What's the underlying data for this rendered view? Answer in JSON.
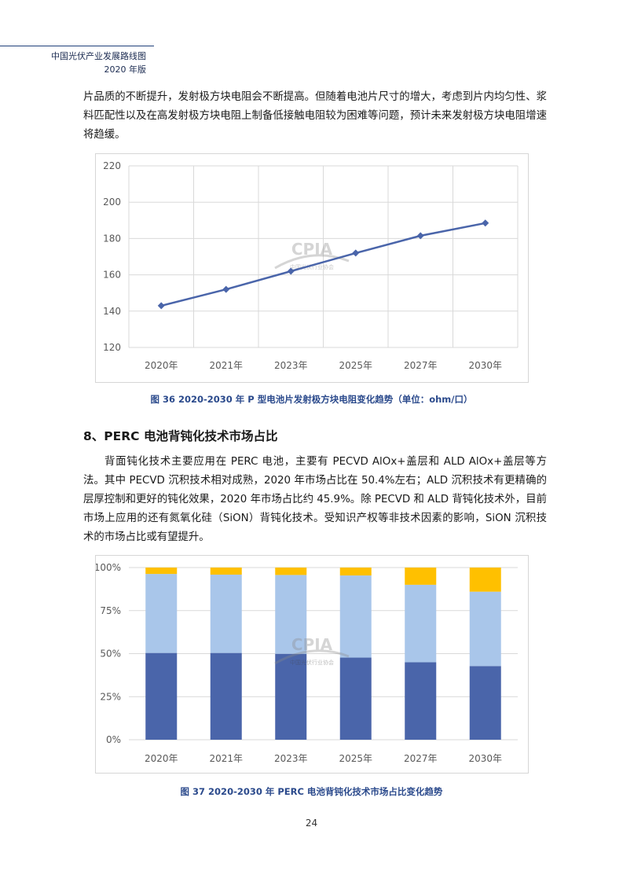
{
  "header": {
    "title": "中国光伏产业发展路线图",
    "subtitle": "2020 年版"
  },
  "intro_paragraph": "片品质的不断提升，发射极方块电阻会不断提高。但随着电池片尺寸的增大，考虑到片内均匀性、浆料匹配性以及在高发射极方块电阻上制备低接触电阻较为困难等问题，预计未来发射极方块电阻增速将趋缓。",
  "figure36": {
    "caption": "图 36   2020-2030 年 P 型电池片发射极方块电阻变化趋势（单位：ohm/口）",
    "watermark": "CPIA",
    "watermark_sub": "中国光伏行业协会"
  },
  "section8": {
    "title": "8、PERC 电池背钝化技术市场占比",
    "paragraph": "背面钝化技术主要应用在 PERC 电池，主要有 PECVD AlOx+盖层和 ALD AlOx+盖层等方法。其中 PECVD 沉积技术相对成熟，2020 年市场占比在 50.4%左右；ALD 沉积技术有更精确的层厚控制和更好的钝化效果，2020 年市场占比约 45.9%。除 PECVD 和 ALD 背钝化技术外，目前市场上应用的还有氮氧化硅（SiON）背钝化技术。受知识产权等非技术因素的影响，SiON 沉积技术的市场占比或有望提升。"
  },
  "figure37": {
    "caption": "图 37   2020-2030 年 PERC 电池背钝化技术市场占比变化趋势",
    "watermark": "CPIA",
    "watermark_sub": "中国光伏行业协会"
  },
  "page_number": "24",
  "colors": {
    "line": "#4a65aa",
    "bar_bottom": "#4a65aa",
    "bar_middle": "#a9c6ea",
    "bar_top": "#ffc000",
    "caption": "#2b4a8c"
  },
  "chart_data": [
    {
      "type": "line",
      "title": "",
      "categories": [
        "2020年",
        "2021年",
        "2023年",
        "2025年",
        "2027年",
        "2030年"
      ],
      "values": [
        143,
        152,
        162,
        172,
        181.5,
        188.5
      ],
      "yticks": [
        "120",
        "140",
        "160",
        "180",
        "200",
        "220"
      ],
      "ylim": [
        120,
        220
      ],
      "grid": true,
      "marker": "diamond"
    },
    {
      "type": "bar",
      "stacked": true,
      "title": "",
      "categories": [
        "2020年",
        "2021年",
        "2023年",
        "2025年",
        "2027年",
        "2030年"
      ],
      "series": [
        {
          "name": "PECVD",
          "values": [
            50.4,
            50.4,
            49.9,
            47.7,
            45.0,
            42.8
          ]
        },
        {
          "name": "ALD",
          "values": [
            45.9,
            45.5,
            45.8,
            47.7,
            45.0,
            43.2
          ]
        },
        {
          "name": "SiON",
          "values": [
            3.7,
            4.1,
            4.3,
            4.6,
            10.0,
            14.0
          ]
        }
      ],
      "yticks": [
        "0%",
        "25%",
        "50%",
        "75%",
        "100%"
      ],
      "ylim": [
        0,
        100
      ],
      "grid": true
    }
  ]
}
